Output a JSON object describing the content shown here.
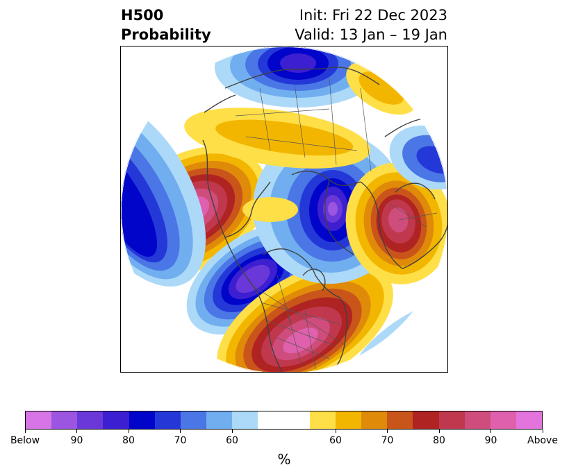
{
  "header": {
    "title_line1": "H500",
    "title_line2": "Probability",
    "init_text": "Init: Fri 22 Dec 2023",
    "valid_text": "Valid: 13 Jan – 19 Jan"
  },
  "map": {
    "projection": "north-polar-stereographic",
    "field": "500 hPa height probability",
    "features": [
      {
        "label": "north-pacific-above",
        "category": "Above",
        "peak_percent": 95
      },
      {
        "label": "western-canada-below",
        "category": "Below",
        "peak_percent": 90
      },
      {
        "label": "southeast-us-above",
        "category": "Above",
        "peak_percent": 95
      },
      {
        "label": "greenland-arctic-below",
        "category": "Below",
        "peak_percent": 95
      },
      {
        "label": "siberia-north-below",
        "category": "Below",
        "peak_percent": 85
      },
      {
        "label": "europe-above",
        "category": "Above",
        "peak_percent": 90
      },
      {
        "label": "arctic-canada-above",
        "category": "Above",
        "peak_percent": 60
      }
    ]
  },
  "colorbar": {
    "unit_label": "%",
    "colors": [
      "#d774e6",
      "#9b55e0",
      "#6a38d8",
      "#3c1fd0",
      "#0005c9",
      "#2438d8",
      "#4a76e6",
      "#70aef0",
      "#acd9f8",
      "#ffffff",
      "#ffffff",
      "#ffdf47",
      "#f2b600",
      "#e08a0a",
      "#c9551b",
      "#b02323",
      "#c0384e",
      "#cf4d7c",
      "#df60ad",
      "#e374de"
    ],
    "tick_labels": [
      "Below",
      "90",
      "80",
      "70",
      "60",
      "60",
      "70",
      "80",
      "90",
      "Above"
    ],
    "tick_segment_edges": [
      0,
      2,
      4,
      6,
      8,
      12,
      14,
      16,
      18,
      20
    ]
  }
}
